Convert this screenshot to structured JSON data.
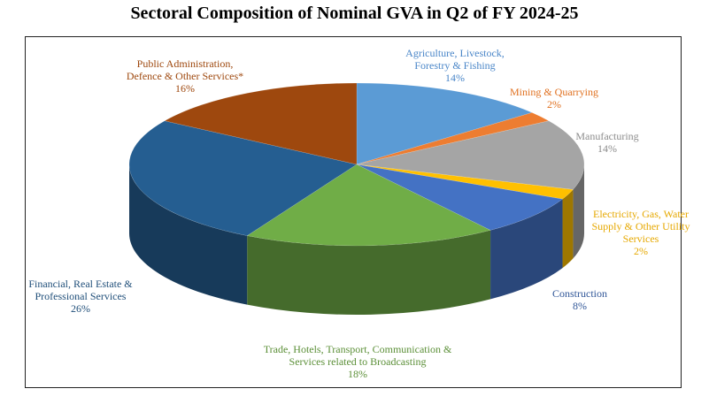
{
  "chart_data": {
    "type": "pie",
    "title": "Sectoral Composition of Nominal GVA in Q2 of FY 2024-25",
    "slices": [
      {
        "lines": [
          "Agriculture, Livestock,",
          "Forestry & Fishing"
        ],
        "pct": "14%",
        "value": 14,
        "color": "#5b9bd5",
        "label_color": "#4a86c8"
      },
      {
        "lines": [
          "Mining & Quarrying"
        ],
        "pct": "2%",
        "value": 2,
        "color": "#ed7d31",
        "label_color": "#e0701f"
      },
      {
        "lines": [
          "Manufacturing"
        ],
        "pct": "14%",
        "value": 14,
        "color": "#a5a5a5",
        "label_color": "#8c8c8c"
      },
      {
        "lines": [
          "Electricity, Gas, Water",
          "Supply & Other Utility",
          "Services"
        ],
        "pct": "2%",
        "value": 2,
        "color": "#ffc000",
        "label_color": "#e6a800"
      },
      {
        "lines": [
          "Construction"
        ],
        "pct": "8%",
        "value": 8,
        "color": "#4472c4",
        "label_color": "#2f5597"
      },
      {
        "lines": [
          "Trade, Hotels, Transport, Communication &",
          "Services related to Broadcasting"
        ],
        "pct": "18%",
        "value": 18,
        "color": "#70ad47",
        "label_color": "#5b8f37"
      },
      {
        "lines": [
          "Financial, Real Estate &",
          "Professional Services"
        ],
        "pct": "26%",
        "value": 26,
        "color": "#255e91",
        "label_color": "#1f4e79"
      },
      {
        "lines": [
          "Public Administration,",
          "Defence & Other Services*"
        ],
        "pct": "16%",
        "value": 16,
        "color": "#9e480e",
        "label_color": "#9e480e"
      }
    ]
  }
}
